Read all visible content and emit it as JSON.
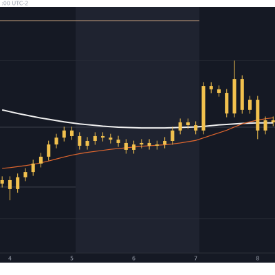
{
  "chart_data": {
    "type": "candlestick",
    "title": ":00 UTC-2",
    "x": [
      3.875,
      4.0,
      4.125,
      4.25,
      4.375,
      4.5,
      4.625,
      4.75,
      4.875,
      5.0,
      5.125,
      5.25,
      5.375,
      5.5,
      5.625,
      5.75,
      5.875,
      6.0,
      6.125,
      6.25,
      6.375,
      6.5,
      6.625,
      6.75,
      6.875,
      7.0,
      7.125,
      7.25,
      7.375,
      7.5,
      7.625,
      7.75,
      7.875,
      8.0,
      8.125,
      8.25
    ],
    "open": [
      30.5,
      31.9,
      28.4,
      33.0,
      35.1,
      38.4,
      41.1,
      45.9,
      48.6,
      51.4,
      49.2,
      45.4,
      47.3,
      49.2,
      48.6,
      47.8,
      46.5,
      43.8,
      45.9,
      46.5,
      45.4,
      45.9,
      47.3,
      51.4,
      54.6,
      53.5,
      51.4,
      68.9,
      67.6,
      66.2,
      58.1,
      71.6,
      59.5,
      63.5,
      51.4,
      55.4
    ],
    "high": [
      33.4,
      33.4,
      34.5,
      36.6,
      39.9,
      42.6,
      47.4,
      50.1,
      52.9,
      52.9,
      50.7,
      48.8,
      50.7,
      50.7,
      50.1,
      49.3,
      48.0,
      47.4,
      48.0,
      48.0,
      47.4,
      48.8,
      52.9,
      56.1,
      56.1,
      55.0,
      70.4,
      70.4,
      69.1,
      67.7,
      78.9,
      73.1,
      65.0,
      65.0,
      56.9,
      56.9
    ],
    "low": [
      29.0,
      24.0,
      26.9,
      31.5,
      33.6,
      36.9,
      39.6,
      44.4,
      47.1,
      47.7,
      43.9,
      43.9,
      45.8,
      47.1,
      46.3,
      45.0,
      42.3,
      42.3,
      44.4,
      43.9,
      43.9,
      44.4,
      45.8,
      49.9,
      52.0,
      49.9,
      49.9,
      66.1,
      64.7,
      56.6,
      56.6,
      58.0,
      58.0,
      48.0,
      49.9,
      53.1
    ],
    "close": [
      31.9,
      28.4,
      33.0,
      35.1,
      38.4,
      41.1,
      45.9,
      48.6,
      51.4,
      49.2,
      45.4,
      47.3,
      49.2,
      48.6,
      47.8,
      46.5,
      43.8,
      45.9,
      46.5,
      45.4,
      45.9,
      47.3,
      51.4,
      54.6,
      53.5,
      51.4,
      68.9,
      67.6,
      66.2,
      58.1,
      71.6,
      59.5,
      63.5,
      51.4,
      55.4,
      54.6
    ],
    "candle_color": "#f2c14e",
    "lines": [
      {
        "color": "#f0f0f0",
        "values": [
          59.5,
          58.8,
          58.1,
          57.5,
          56.9,
          56.3,
          55.8,
          55.3,
          54.8,
          54.4,
          54.0,
          53.7,
          53.4,
          53.1,
          52.9,
          52.7,
          52.6,
          52.5,
          52.4,
          52.4,
          52.4,
          52.4,
          52.5,
          52.6,
          52.7,
          52.8,
          53.0,
          53.3,
          53.6,
          53.8,
          54.0,
          54.2,
          54.3,
          54.4,
          54.4,
          54.4
        ]
      },
      {
        "color": "#e2672e",
        "values": [
          36.5,
          36.8,
          37.2,
          37.6,
          38.1,
          38.7,
          39.4,
          40.2,
          41.0,
          41.7,
          42.3,
          42.8,
          43.2,
          43.6,
          44.0,
          44.3,
          44.6,
          44.9,
          45.2,
          45.4,
          45.6,
          45.8,
          46.1,
          46.5,
          47.0,
          47.5,
          48.5,
          49.5,
          50.5,
          51.5,
          52.8,
          54.0,
          54.8,
          55.5,
          56.0,
          56.4
        ]
      }
    ],
    "xlim": [
      3.84,
      8.28
    ],
    "xticks": [
      4,
      5,
      6,
      7,
      8
    ],
    "ylim": [
      0,
      100
    ]
  }
}
